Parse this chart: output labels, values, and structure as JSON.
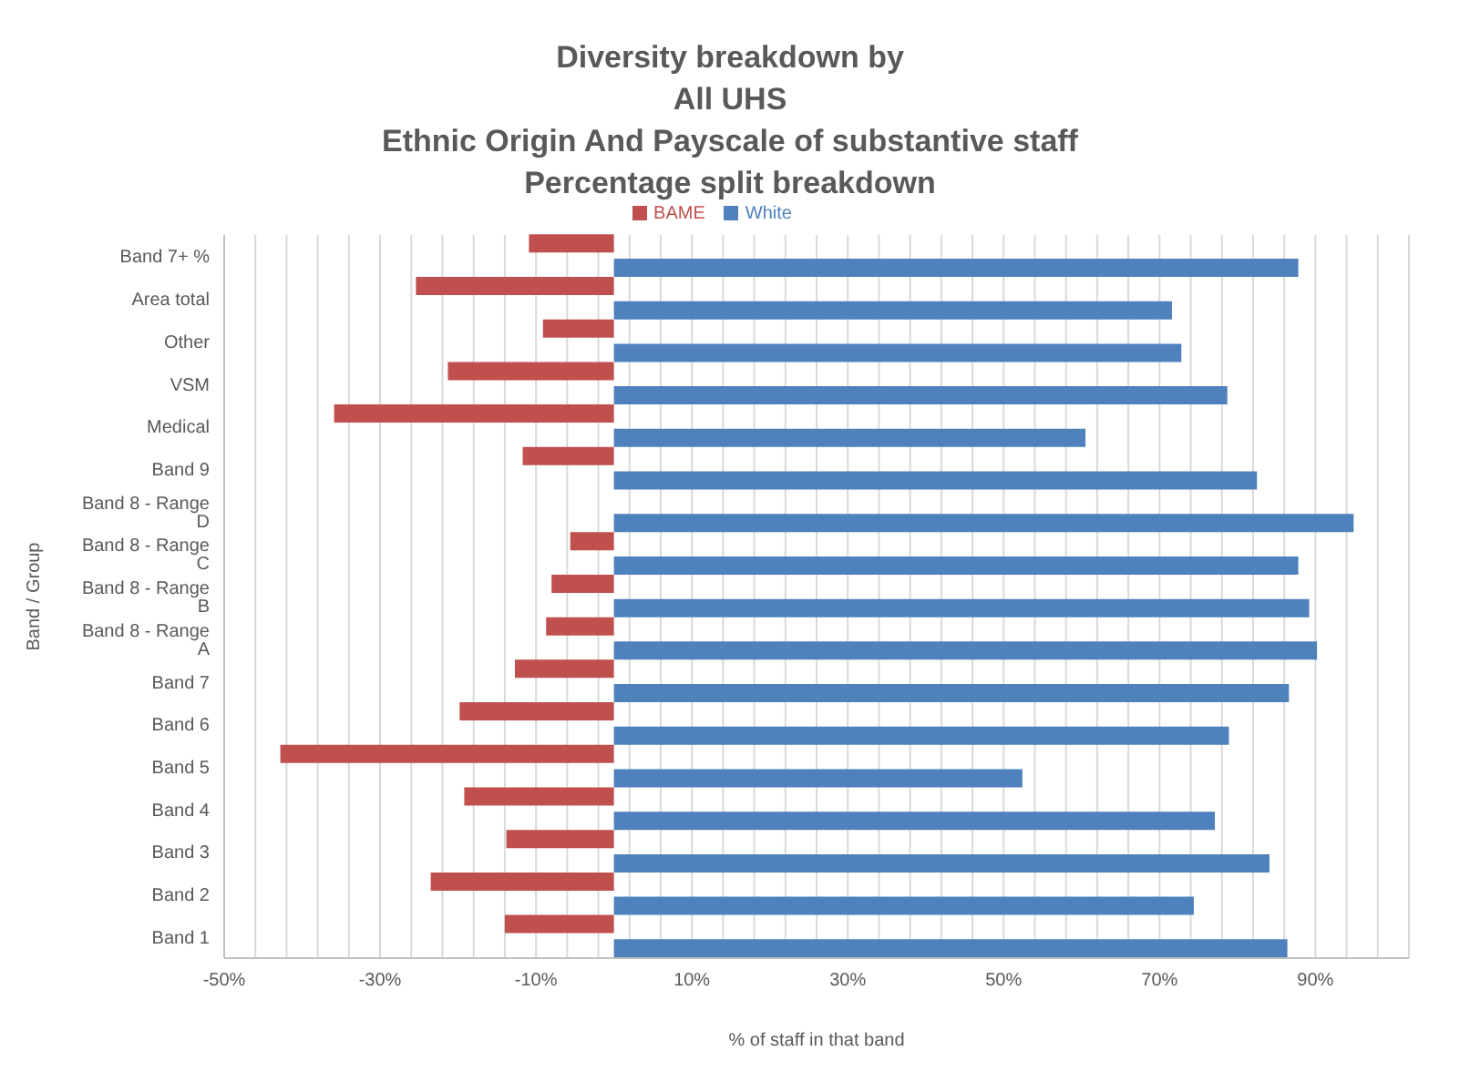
{
  "chart_data": {
    "type": "bar",
    "orientation": "horizontal",
    "title": "Diversity breakdown by\nAll UHS\nEthnic Origin And Payscale of substantive staff\nPercentage split breakdown",
    "xlabel": "% of staff in that band",
    "ylabel": "Band / Group",
    "categories": [
      "Band 7+ %",
      "Area total",
      "Other",
      "VSM",
      "Medical",
      "Band 9",
      "Band 8 - Range D",
      "Band 8 - Range C",
      "Band 8 - Range B",
      "Band 8 - Range A",
      "Band 7",
      "Band 6",
      "Band 5",
      "Band 4",
      "Band 3",
      "Band 2",
      "Band 1"
    ],
    "series": [
      {
        "name": "White",
        "color": "#4f81bd",
        "values": [
          87.8,
          71.6,
          72.8,
          78.7,
          60.5,
          82.5,
          94.9,
          87.8,
          89.2,
          90.2,
          86.6,
          78.9,
          52.4,
          77.1,
          84.1,
          74.4,
          86.4
        ]
      },
      {
        "name": "BAME",
        "color": "#c0504d",
        "values": [
          -10.9,
          -25.4,
          -9.1,
          -21.3,
          -35.9,
          -11.7,
          null,
          -5.6,
          -8.0,
          -8.7,
          -12.7,
          -19.8,
          -42.8,
          -19.2,
          -13.8,
          -23.5,
          -14.0
        ]
      }
    ],
    "xlim": [
      -50,
      102
    ],
    "xticks": [
      {
        "value": -50,
        "label": "-50%"
      },
      {
        "value": -46,
        "label": null
      },
      {
        "value": -42,
        "label": null
      },
      {
        "value": -38,
        "label": null
      },
      {
        "value": -34,
        "label": null
      },
      {
        "value": -30,
        "label": "-30%"
      },
      {
        "value": -26,
        "label": null
      },
      {
        "value": -22,
        "label": null
      },
      {
        "value": -18,
        "label": null
      },
      {
        "value": -14,
        "label": null
      },
      {
        "value": -10,
        "label": "-10%"
      },
      {
        "value": -6,
        "label": null
      },
      {
        "value": -2,
        "label": null
      },
      {
        "value": 2,
        "label": null
      },
      {
        "value": 6,
        "label": null
      },
      {
        "value": 10,
        "label": "10%"
      },
      {
        "value": 14,
        "label": null
      },
      {
        "value": 18,
        "label": null
      },
      {
        "value": 22,
        "label": null
      },
      {
        "value": 26,
        "label": null
      },
      {
        "value": 30,
        "label": "30%"
      },
      {
        "value": 34,
        "label": null
      },
      {
        "value": 38,
        "label": null
      },
      {
        "value": 42,
        "label": null
      },
      {
        "value": 46,
        "label": null
      },
      {
        "value": 50,
        "label": "50%"
      },
      {
        "value": 54,
        "label": null
      },
      {
        "value": 58,
        "label": null
      },
      {
        "value": 62,
        "label": null
      },
      {
        "value": 66,
        "label": null
      },
      {
        "value": 70,
        "label": "70%"
      },
      {
        "value": 74,
        "label": null
      },
      {
        "value": 78,
        "label": null
      },
      {
        "value": 82,
        "label": null
      },
      {
        "value": 86,
        "label": null
      },
      {
        "value": 90,
        "label": "90%"
      },
      {
        "value": 94,
        "label": null
      },
      {
        "value": 98,
        "label": null
      },
      {
        "value": 102,
        "label": null
      }
    ],
    "grid": "x",
    "legend": "top"
  }
}
